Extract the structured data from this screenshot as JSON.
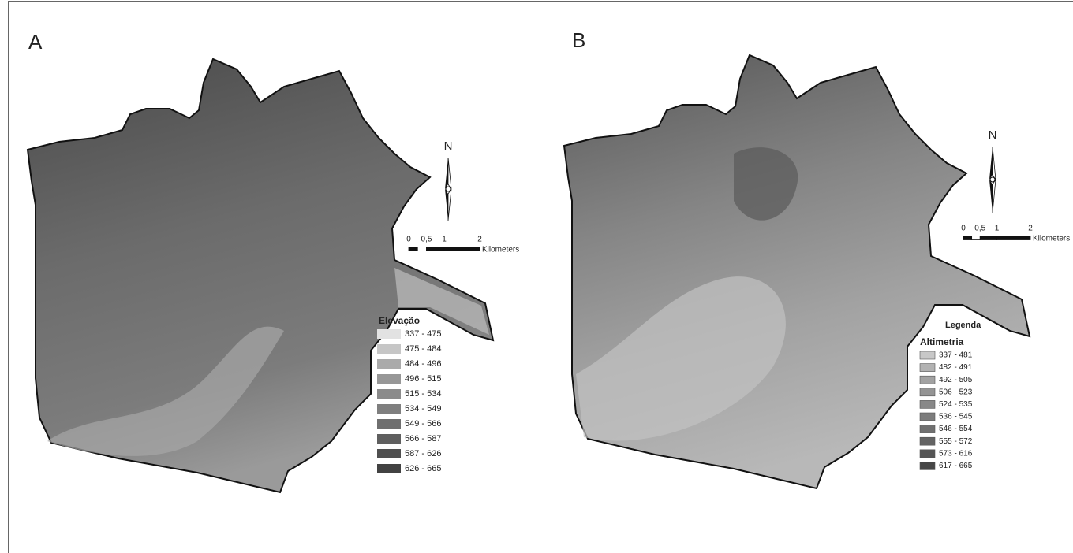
{
  "panels": [
    {
      "label": "A",
      "north": "N",
      "scale": {
        "ticks": [
          "0",
          "0,5",
          "1",
          "2"
        ],
        "unit": "Kilometers"
      },
      "legend": {
        "title": "Elevação",
        "classes": [
          {
            "label": "337 - 475",
            "color": "#e2e2e2"
          },
          {
            "label": "475 - 484",
            "color": "#c6c6c6"
          },
          {
            "label": "484 - 496",
            "color": "#aaaaaa"
          },
          {
            "label": "496 - 515",
            "color": "#979797"
          },
          {
            "label": "515 - 534",
            "color": "#8b8b8b"
          },
          {
            "label": "534 - 549",
            "color": "#7f7f7f"
          },
          {
            "label": "549 - 566",
            "color": "#6f6f6f"
          },
          {
            "label": "566 - 587",
            "color": "#5f5f5f"
          },
          {
            "label": "587 - 626",
            "color": "#4f4f4f"
          },
          {
            "label": "626 - 665",
            "color": "#424242"
          }
        ]
      }
    },
    {
      "label": "B",
      "north": "N",
      "scale": {
        "ticks": [
          "0",
          "0,5",
          "1",
          "2"
        ],
        "unit": "Kilometers"
      },
      "legend": {
        "heading": "Legenda",
        "title": "Altimetria",
        "classes": [
          {
            "label": "337 - 481",
            "color": "#c8c8c8"
          },
          {
            "label": "482 - 491",
            "color": "#b2b2b2"
          },
          {
            "label": "492 - 505",
            "color": "#a2a2a2"
          },
          {
            "label": "506 - 523",
            "color": "#949494"
          },
          {
            "label": "524 - 535",
            "color": "#888888"
          },
          {
            "label": "536 - 545",
            "color": "#7c7c7c"
          },
          {
            "label": "546 - 554",
            "color": "#707070"
          },
          {
            "label": "555 - 572",
            "color": "#636363"
          },
          {
            "label": "573 - 616",
            "color": "#555555"
          },
          {
            "label": "617 - 665",
            "color": "#464646"
          }
        ]
      }
    }
  ]
}
